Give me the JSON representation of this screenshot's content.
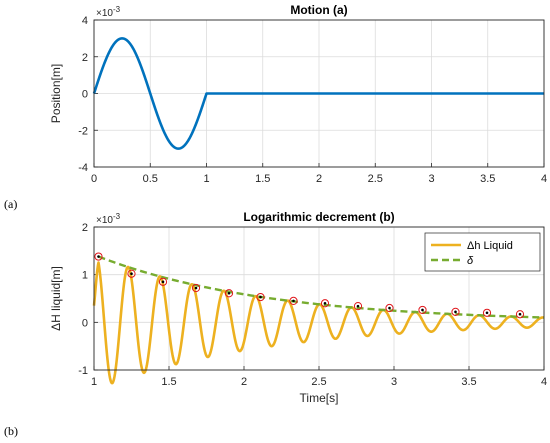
{
  "sublabels": {
    "a": "(a)",
    "b": "(b)"
  },
  "chart_data": [
    {
      "type": "line",
      "title": "Motion (a)",
      "xlabel": "",
      "ylabel": "Position[m]",
      "exponent": "×10",
      "exponent_power": "-3",
      "xlim": [
        0,
        4
      ],
      "ylim": [
        -4,
        4
      ],
      "xticks": [
        0,
        0.5,
        1,
        1.5,
        2,
        2.5,
        3,
        3.5,
        4
      ],
      "xtick_labels": [
        "0",
        "0.5",
        "1",
        "1.5",
        "2",
        "2.5",
        "3",
        "3.5",
        "4"
      ],
      "yticks": [
        -4,
        -2,
        0,
        2,
        4
      ],
      "ytick_labels": [
        "-4",
        "-2",
        "0",
        "2",
        "4"
      ],
      "grid": true,
      "series": [
        {
          "color": "#0072BD",
          "x": [
            0,
            0.05,
            0.1,
            0.15,
            0.2,
            0.25,
            0.3,
            0.35,
            0.4,
            0.45,
            0.5,
            0.55,
            0.6,
            0.65,
            0.7,
            0.75,
            0.8,
            0.85,
            0.9,
            0.95,
            1.0,
            1.5,
            2.0,
            2.5,
            3.0,
            3.5,
            4.0
          ],
          "y": [
            0,
            0.93,
            1.76,
            2.43,
            2.85,
            3.0,
            2.85,
            2.43,
            1.76,
            0.93,
            0,
            -0.93,
            -1.76,
            -2.43,
            -2.85,
            -3.0,
            -2.85,
            -2.43,
            -1.76,
            -0.93,
            0,
            0,
            0,
            0,
            0,
            0,
            0
          ]
        }
      ]
    },
    {
      "type": "line",
      "title": "Logarithmic decrement (b)",
      "xlabel": "Time[s]",
      "ylabel": "ΔH liquid[m]",
      "exponent": "×10",
      "exponent_power": "-3",
      "xlim": [
        1,
        4
      ],
      "ylim": [
        -1,
        2
      ],
      "xticks": [
        1,
        1.5,
        2,
        2.5,
        3,
        3.5,
        4
      ],
      "xtick_labels": [
        "1",
        "1.5",
        "2",
        "2.5",
        "3",
        "3.5",
        "4"
      ],
      "yticks": [
        -1,
        0,
        1,
        2
      ],
      "ytick_labels": [
        "-1",
        "0",
        "1",
        "2"
      ],
      "grid": true,
      "legend": "top-right",
      "series": [
        {
          "name": "Δh Liquid",
          "color": "#EDB120",
          "offset": 0.0,
          "amp0": 1.42,
          "decay": 0.88,
          "freq": 4.7,
          "x_start": 1.0,
          "x_end": 4.0
        },
        {
          "name": "δ",
          "color": "#77AC30",
          "dashed": true,
          "x": [
            1.03,
            4.0
          ],
          "amp0": 1.38,
          "decay": 0.88
        }
      ],
      "peaks": {
        "x": [
          1.03,
          1.25,
          1.46,
          1.68,
          1.9,
          2.11,
          2.33,
          2.54,
          2.76,
          2.97,
          3.19,
          3.41,
          3.62,
          3.84
        ],
        "y": [
          1.38,
          1.02,
          0.85,
          0.72,
          0.61,
          0.53,
          0.45,
          0.4,
          0.34,
          0.3,
          0.26,
          0.22,
          0.2,
          0.17
        ]
      }
    }
  ]
}
